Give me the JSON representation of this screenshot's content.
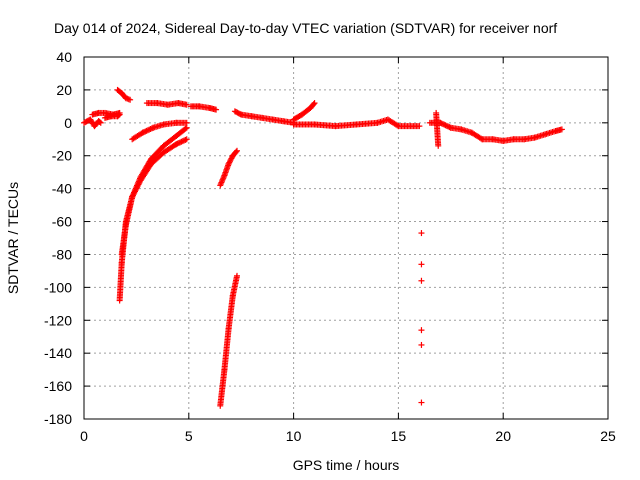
{
  "chart_data": {
    "type": "scatter",
    "title": "Day 014 of 2024, Sidereal Day-to-day VTEC variation (SDTVAR) for receiver norf",
    "xlabel": "GPS time / hours",
    "ylabel": "SDTVAR / TECUs",
    "xlim": [
      0,
      25
    ],
    "ylim": [
      -180,
      40
    ],
    "xticks": [
      0,
      5,
      10,
      15,
      20,
      25
    ],
    "yticks": [
      -180,
      -160,
      -140,
      -120,
      -100,
      -80,
      -60,
      -40,
      -20,
      0,
      20,
      40
    ],
    "grid": true,
    "marker": "+",
    "color": "#ff0000",
    "series": [
      {
        "name": "SDTVAR",
        "segments": [
          {
            "x": [
              0.0,
              0.3,
              0.5,
              0.7,
              0.8
            ],
            "y": [
              0,
              2,
              -2,
              1,
              0
            ]
          },
          {
            "x": [
              0.4,
              0.7,
              1.0,
              1.4,
              1.7
            ],
            "y": [
              5,
              6,
              6,
              5,
              6
            ]
          },
          {
            "x": [
              1.0,
              1.3,
              1.6,
              1.7
            ],
            "y": [
              3,
              4,
              4,
              5
            ]
          },
          {
            "x": [
              1.6,
              1.8,
              2.0,
              2.2
            ],
            "y": [
              20,
              18,
              15,
              14
            ]
          },
          {
            "x": [
              3.0,
              3.5,
              4.0,
              4.5,
              4.9
            ],
            "y": [
              12,
              12,
              11,
              12,
              11
            ]
          },
          {
            "x": [
              5.1,
              5.5,
              6.0,
              6.3
            ],
            "y": [
              10,
              10,
              9,
              8
            ]
          },
          {
            "x": [
              7.2,
              7.5,
              8.0,
              8.5,
              9.0,
              9.5,
              10.0
            ],
            "y": [
              7,
              5,
              4,
              3,
              2,
              1,
              0
            ]
          },
          {
            "x": [
              10.0,
              10.4,
              10.8,
              11.0
            ],
            "y": [
              2,
              5,
              9,
              12
            ]
          },
          {
            "x": [
              10.0,
              11.0,
              12.0,
              13.0,
              14.0,
              14.5,
              15.0,
              16.0
            ],
            "y": [
              -1,
              -1,
              -2,
              -1,
              0,
              2,
              -2,
              -2
            ]
          },
          {
            "x": [
              16.5,
              17.0,
              17.5,
              18.0,
              18.5,
              19.0,
              19.5,
              20.0
            ],
            "y": [
              0,
              0,
              -3,
              -4,
              -6,
              -10,
              -10,
              -11
            ]
          },
          {
            "x": [
              20.0,
              20.5,
              21.0,
              21.5,
              22.0,
              22.5,
              22.8
            ],
            "y": [
              -11,
              -10,
              -10,
              -9,
              -7,
              -5,
              -4
            ]
          },
          {
            "x": [
              1.7,
              1.8,
              2.0,
              2.3,
              2.7,
              3.2,
              3.8,
              4.4,
              4.9
            ],
            "y": [
              -108,
              -85,
              -60,
              -45,
              -35,
              -25,
              -18,
              -13,
              -10
            ]
          },
          {
            "x": [
              1.8,
              2.0,
              2.3,
              2.7,
              3.2,
              3.8,
              4.4,
              4.9
            ],
            "y": [
              -80,
              -62,
              -45,
              -33,
              -22,
              -14,
              -8,
              -3
            ]
          },
          {
            "x": [
              2.3,
              2.8,
              3.3,
              3.8,
              4.4,
              4.9
            ],
            "y": [
              -10,
              -6,
              -3,
              -1,
              0,
              0
            ]
          },
          {
            "x": [
              6.5,
              6.7,
              6.9,
              7.1,
              7.3
            ],
            "y": [
              -38,
              -32,
              -25,
              -20,
              -17
            ]
          },
          {
            "x": [
              6.5,
              6.7,
              6.9,
              7.1,
              7.3
            ],
            "y": [
              -172,
              -150,
              -125,
              -105,
              -93
            ]
          },
          {
            "x": [
              16.1,
              16.1,
              16.1,
              16.1,
              16.1,
              16.1
            ],
            "y": [
              -67,
              -86,
              -96,
              -126,
              -135,
              -170
            ]
          },
          {
            "x": [
              16.8,
              16.9
            ],
            "y": [
              6,
              -14
            ]
          }
        ]
      }
    ]
  }
}
